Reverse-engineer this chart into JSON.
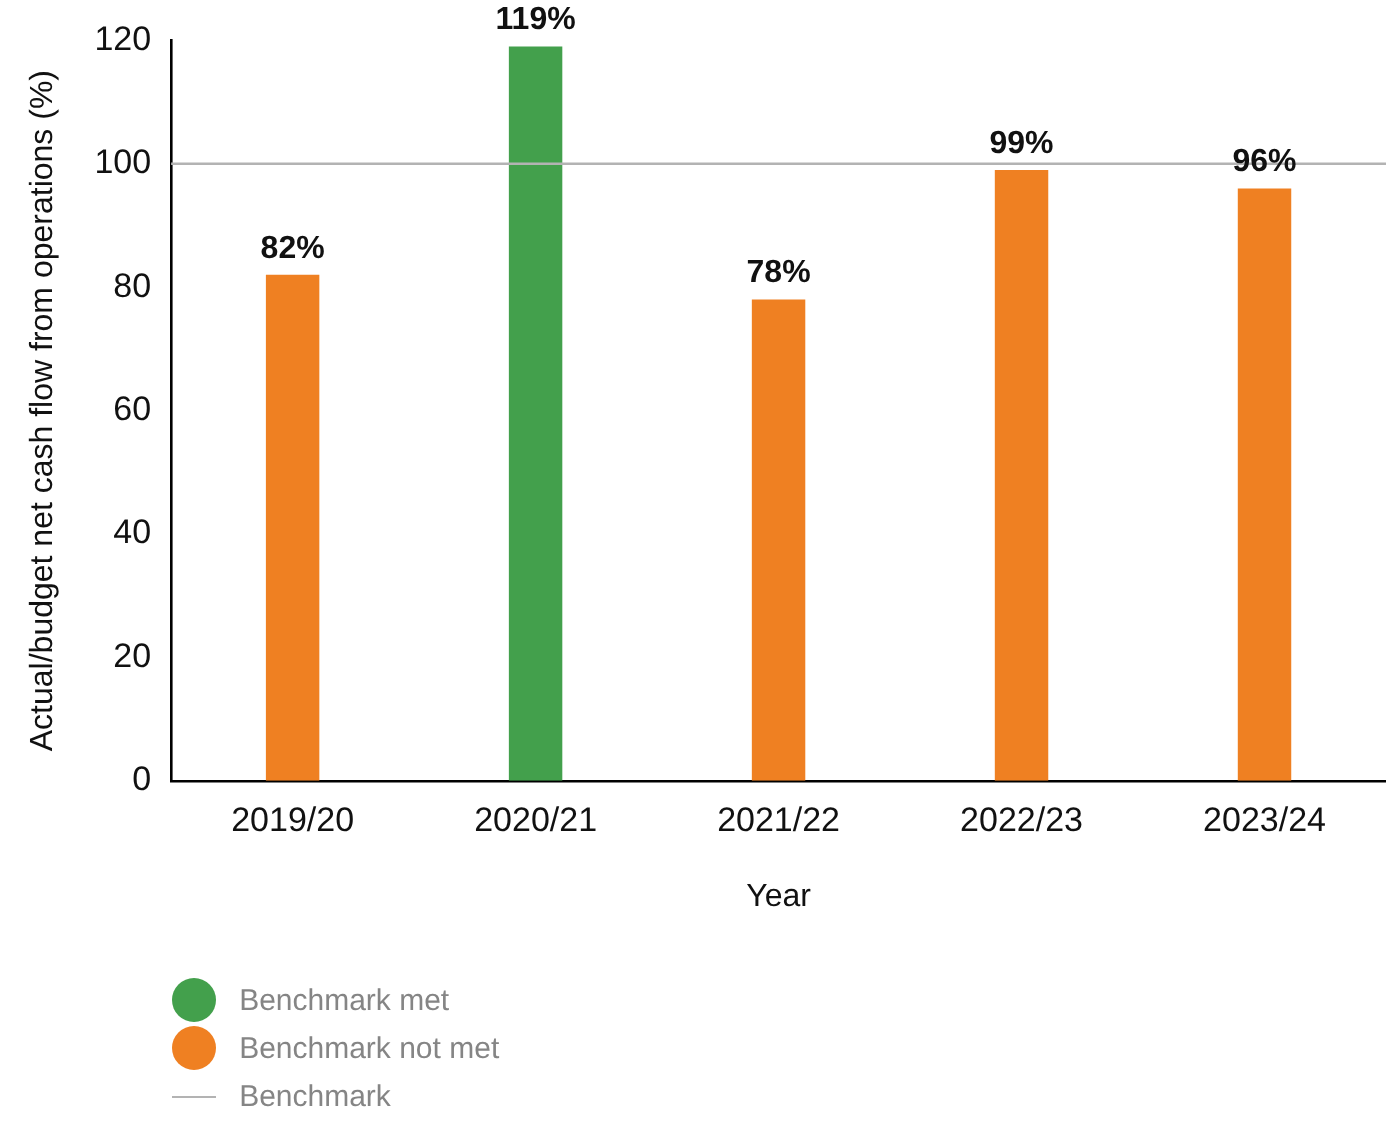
{
  "chart_data": {
    "type": "bar",
    "categories": [
      "2019/20",
      "2020/21",
      "2021/22",
      "2022/23",
      "2023/24"
    ],
    "series": [
      {
        "name": "Benchmark met",
        "color": "#43a04c",
        "values": [
          null,
          119,
          null,
          null,
          null
        ],
        "value_labels": [
          null,
          "119%",
          null,
          null,
          null
        ]
      },
      {
        "name": "Benchmark not met",
        "color": "#ef8022",
        "values": [
          82,
          null,
          78,
          99,
          96
        ],
        "value_labels": [
          "82%",
          null,
          "78%",
          "99%",
          "96%"
        ]
      }
    ],
    "xlabel": "Year",
    "ylabel": "Actual/budget net cash flow from operations (%)",
    "ylim": [
      0,
      120
    ],
    "yticks": [
      0,
      20,
      40,
      60,
      80,
      100,
      120
    ],
    "ref_lines": [
      {
        "axis": "y",
        "value": 100,
        "label": "Benchmark",
        "color": "#b3b3b3"
      }
    ],
    "legend": "bottom left"
  }
}
